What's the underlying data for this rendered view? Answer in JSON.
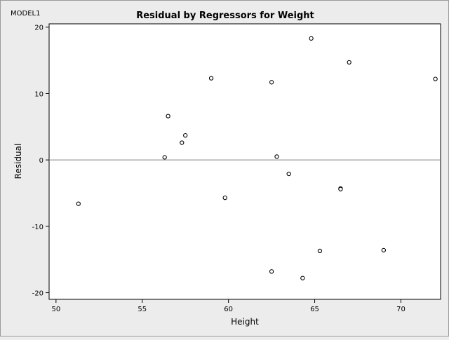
{
  "model_label": "MODEL1",
  "chart_data": {
    "type": "scatter",
    "title": "Residual by Regressors for Weight",
    "xlabel": "Height",
    "ylabel": "Residual",
    "xlim": [
      49.6,
      72.3
    ],
    "ylim": [
      -21,
      20.5
    ],
    "x_ticks": [
      50,
      55,
      60,
      65,
      70
    ],
    "y_ticks": [
      -20,
      -10,
      0,
      10,
      20
    ],
    "reference_line": 0,
    "grid": false,
    "marker": "open-circle",
    "colors": {
      "plot_bg": "#ffffff",
      "page_bg": "#ececec",
      "marker": "#000000",
      "reference_line": "#808080"
    },
    "points": [
      {
        "x": 51.3,
        "y": -6.6
      },
      {
        "x": 56.3,
        "y": 0.4
      },
      {
        "x": 56.5,
        "y": 6.6
      },
      {
        "x": 57.3,
        "y": 2.6
      },
      {
        "x": 57.5,
        "y": 3.7
      },
      {
        "x": 59.0,
        "y": 12.3
      },
      {
        "x": 59.8,
        "y": -5.7
      },
      {
        "x": 62.5,
        "y": 11.7
      },
      {
        "x": 62.5,
        "y": -16.8
      },
      {
        "x": 62.8,
        "y": 0.5
      },
      {
        "x": 63.5,
        "y": -2.1
      },
      {
        "x": 64.3,
        "y": -17.8
      },
      {
        "x": 64.8,
        "y": 18.3
      },
      {
        "x": 65.3,
        "y": -13.7
      },
      {
        "x": 66.5,
        "y": -4.3
      },
      {
        "x": 66.5,
        "y": -4.4
      },
      {
        "x": 67.0,
        "y": 14.7
      },
      {
        "x": 69.0,
        "y": -13.6
      },
      {
        "x": 72.0,
        "y": 12.2
      }
    ]
  }
}
